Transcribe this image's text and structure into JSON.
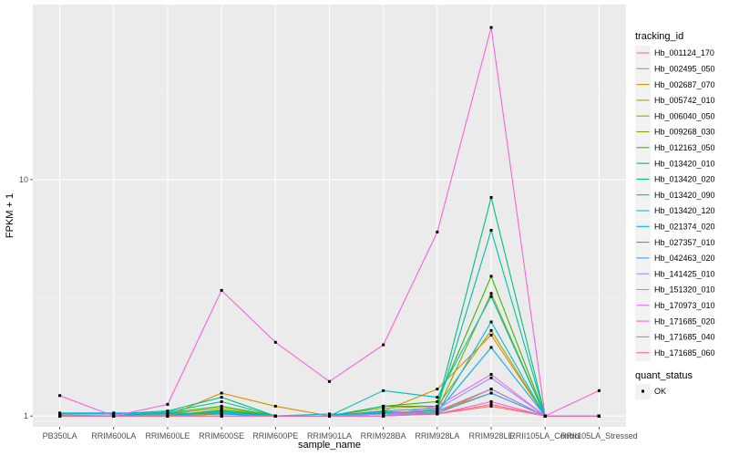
{
  "chart_data": {
    "type": "line",
    "title": "",
    "xlabel": "sample_name",
    "ylabel": "FPKM + 1",
    "y_scale": "log10",
    "ylim": [
      0.9,
      55
    ],
    "y_ticks": [
      1,
      10
    ],
    "y_tick_labels": [
      "1",
      "10"
    ],
    "grid": true,
    "legend_position": "right",
    "categories": [
      "PB350LA",
      "RRIM600LA",
      "RRIM600LE",
      "RRIM600SE",
      "RRIM600PE",
      "RRIM901LA",
      "RRIM928BA",
      "RRIM928LA",
      "RRIM928LE",
      "RRII105LA_Control",
      "RRII105LA_Stressed"
    ],
    "legend_color": {
      "title": "tracking_id",
      "entries": [
        "Hb_001124_170",
        "Hb_002495_050",
        "Hb_002687_070",
        "Hb_005742_010",
        "Hb_006040_050",
        "Hb_009268_030",
        "Hb_012163_050",
        "Hb_013420_010",
        "Hb_013420_020",
        "Hb_013420_090",
        "Hb_013420_120",
        "Hb_021374_020",
        "Hb_027357_010",
        "Hb_042463_020",
        "Hb_141425_010",
        "Hb_151320_010",
        "Hb_170973_010",
        "Hb_171685_020",
        "Hb_171685_040",
        "Hb_171685_060"
      ]
    },
    "legend_shape": {
      "title": "quant_status",
      "entries": [
        "OK"
      ]
    },
    "series": [
      {
        "name": "Hb_001124_170",
        "color": "#F8766D",
        "values": [
          1.0,
          1.0,
          1.0,
          1.02,
          1.0,
          1.0,
          1.0,
          1.02,
          1.1,
          1.0,
          1.0
        ]
      },
      {
        "name": "Hb_002495_050",
        "color": "#EA8331",
        "values": [
          1.0,
          1.0,
          1.01,
          1.05,
          1.0,
          1.0,
          1.02,
          1.05,
          1.25,
          1.0,
          1.0
        ]
      },
      {
        "name": "Hb_002687_070",
        "color": "#D89000",
        "values": [
          1.01,
          1.0,
          1.0,
          1.25,
          1.1,
          1.0,
          1.05,
          1.3,
          2.2,
          1.0,
          1.0
        ]
      },
      {
        "name": "Hb_005742_010",
        "color": "#C09B00",
        "values": [
          1.0,
          1.0,
          1.0,
          1.02,
          1.0,
          1.0,
          1.0,
          1.03,
          1.3,
          1.0,
          1.0
        ]
      },
      {
        "name": "Hb_006040_050",
        "color": "#A3A500",
        "values": [
          1.0,
          1.0,
          1.02,
          1.08,
          1.0,
          1.0,
          1.08,
          1.1,
          2.3,
          1.0,
          1.0
        ]
      },
      {
        "name": "Hb_009268_030",
        "color": "#7CAE00",
        "values": [
          1.0,
          1.0,
          1.0,
          1.05,
          1.0,
          1.0,
          1.02,
          1.06,
          3.3,
          1.0,
          1.0
        ]
      },
      {
        "name": "Hb_012163_050",
        "color": "#39B600",
        "values": [
          1.0,
          1.0,
          1.03,
          1.1,
          1.0,
          1.0,
          1.1,
          1.15,
          3.9,
          1.0,
          1.0
        ]
      },
      {
        "name": "Hb_013420_010",
        "color": "#00BB4E",
        "values": [
          1.0,
          1.0,
          1.0,
          1.06,
          1.0,
          1.0,
          1.03,
          1.05,
          1.3,
          1.0,
          1.0
        ]
      },
      {
        "name": "Hb_013420_020",
        "color": "#00BF7D",
        "values": [
          1.02,
          1.02,
          1.05,
          1.2,
          1.0,
          1.0,
          1.1,
          1.1,
          8.4,
          1.0,
          1.0
        ]
      },
      {
        "name": "Hb_013420_090",
        "color": "#00C1A3",
        "values": [
          1.0,
          1.0,
          1.04,
          1.15,
          1.0,
          1.0,
          1.05,
          1.08,
          6.1,
          1.0,
          1.0
        ]
      },
      {
        "name": "Hb_013420_120",
        "color": "#00BFC4",
        "values": [
          1.0,
          1.0,
          1.0,
          1.04,
          1.0,
          1.0,
          1.28,
          1.2,
          3.2,
          1.0,
          1.0
        ]
      },
      {
        "name": "Hb_021374_020",
        "color": "#00BAE0",
        "values": [
          1.02,
          1.02,
          1.02,
          1.03,
          1.0,
          1.02,
          1.02,
          1.03,
          2.5,
          1.0,
          1.0
        ]
      },
      {
        "name": "Hb_027357_010",
        "color": "#00B0F6",
        "values": [
          1.03,
          1.03,
          1.03,
          1.02,
          1.0,
          1.0,
          1.04,
          1.04,
          1.95,
          1.0,
          1.0
        ]
      },
      {
        "name": "Hb_042463_020",
        "color": "#35A2FF",
        "values": [
          1.0,
          1.0,
          1.0,
          1.0,
          1.0,
          1.0,
          1.0,
          1.03,
          1.25,
          1.0,
          1.0
        ]
      },
      {
        "name": "Hb_141425_010",
        "color": "#9590FF",
        "values": [
          1.0,
          1.0,
          1.0,
          1.0,
          1.0,
          1.0,
          1.02,
          1.07,
          1.45,
          1.0,
          1.0
        ]
      },
      {
        "name": "Hb_151320_010",
        "color": "#C77CFF",
        "values": [
          1.0,
          1.0,
          1.0,
          1.0,
          1.0,
          1.0,
          1.0,
          1.05,
          1.3,
          1.0,
          1.0
        ]
      },
      {
        "name": "Hb_170973_010",
        "color": "#E76BF3",
        "values": [
          1.0,
          1.0,
          1.0,
          1.0,
          1.0,
          1.0,
          1.0,
          1.1,
          1.5,
          1.0,
          1.0
        ]
      },
      {
        "name": "Hb_171685_020",
        "color": "#FA62DB",
        "values": [
          1.22,
          1.0,
          1.12,
          3.4,
          2.05,
          1.4,
          2.0,
          6.0,
          44.0,
          1.0,
          1.28
        ]
      },
      {
        "name": "Hb_171685_040",
        "color": "#FF62BC",
        "values": [
          1.0,
          1.0,
          1.0,
          1.0,
          1.0,
          1.0,
          1.0,
          1.02,
          1.15,
          1.0,
          1.0
        ]
      },
      {
        "name": "Hb_171685_060",
        "color": "#FF6C91",
        "values": [
          1.0,
          1.0,
          1.0,
          1.0,
          1.0,
          1.0,
          1.0,
          1.02,
          1.12,
          1.0,
          1.0
        ]
      }
    ]
  }
}
